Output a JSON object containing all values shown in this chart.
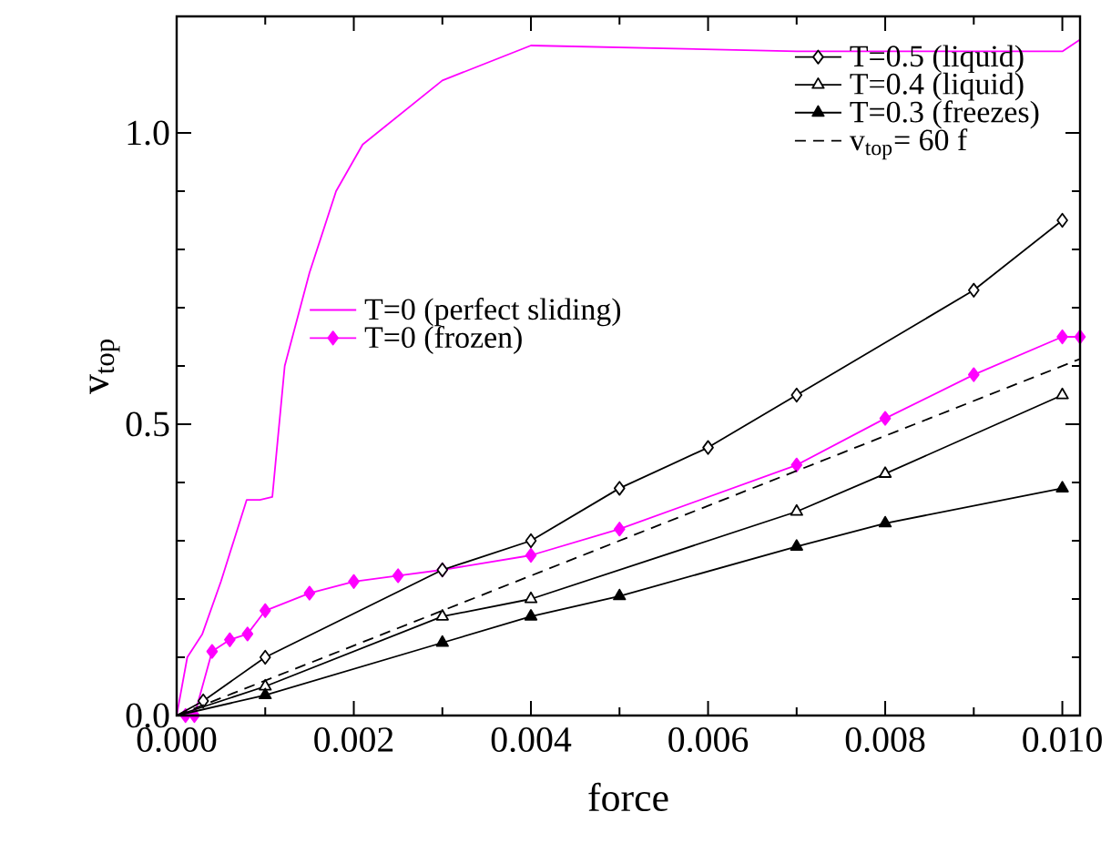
{
  "chart_data": {
    "type": "line",
    "xlabel": "force",
    "ylabel": "v$_{top}$",
    "xlim": [
      0,
      0.0102
    ],
    "ylim": [
      0,
      1.2
    ],
    "xticks": [
      {
        "value": 0,
        "label": "0.000"
      },
      {
        "value": 0.002,
        "label": "0.002"
      },
      {
        "value": 0.004,
        "label": "0.004"
      },
      {
        "value": 0.006,
        "label": "0.006"
      },
      {
        "value": 0.008,
        "label": "0.008"
      },
      {
        "value": 0.01,
        "label": "0.010"
      }
    ],
    "yticks": [
      {
        "value": 0,
        "label": "0.0"
      },
      {
        "value": 0.5,
        "label": "0.5"
      },
      {
        "value": 1.0,
        "label": "1.0"
      }
    ],
    "legend": "top right",
    "grid": false,
    "series": [
      {
        "name": "T=0.5 (liquid)",
        "color": "#000000",
        "marker": "diamond",
        "line_style": "solid",
        "x": [
          0,
          0.0003,
          0.001,
          0.003,
          0.004,
          0.005,
          0.006,
          0.007,
          0.009,
          0.01
        ],
        "values": [
          0,
          0.025,
          0.1,
          0.25,
          0.3,
          0.39,
          0.46,
          0.55,
          0.73,
          0.85
        ]
      },
      {
        "name": "T=0.4 (liquid)",
        "color": "#000000",
        "marker": "triangle",
        "line_style": "solid",
        "x": [
          0,
          0.001,
          0.003,
          0.004,
          0.007,
          0.008,
          0.01
        ],
        "values": [
          0,
          0.05,
          0.17,
          0.2,
          0.35,
          0.415,
          0.55
        ]
      },
      {
        "name": "T=0.3 (freezes)",
        "color": "#000000",
        "marker": "triangle",
        "line_style": "solid",
        "x": [
          0,
          0.001,
          0.003,
          0.004,
          0.005,
          0.007,
          0.008,
          0.01
        ],
        "values": [
          0,
          0.035,
          0.125,
          0.17,
          0.205,
          0.29,
          0.33,
          0.39
        ]
      },
      {
        "name": "v$_{top}$= 60 f",
        "color": "#000000",
        "marker": "none",
        "line_style": "dashed",
        "x": [
          0,
          0.0102
        ],
        "values": [
          0,
          0.612
        ]
      },
      {
        "name": "T=0 (perfect sliding)",
        "color": "#ff00ff",
        "marker": "none",
        "line_style": "solid",
        "x": [
          0,
          0.00012,
          0.00029,
          0.0005,
          0.00079,
          0.00094,
          0.00108,
          0.00122,
          0.0015,
          0.0018,
          0.0021,
          0.003,
          0.004,
          0.007,
          0.01,
          0.0102
        ],
        "values": [
          0,
          0.1,
          0.14,
          0.23,
          0.37,
          0.37,
          0.375,
          0.6,
          0.76,
          0.9,
          0.98,
          1.09,
          1.15,
          1.14,
          1.14,
          1.16
        ]
      },
      {
        "name": "T=0 (frozen)",
        "color": "#ff00ff",
        "marker": "diamond",
        "line_style": "solid",
        "x": [
          0.0001,
          0.0002,
          0.0004,
          0.0006,
          0.0008,
          0.001,
          0.0015,
          0.002,
          0.0025,
          0.003,
          0.004,
          0.005,
          0.007,
          0.008,
          0.009,
          0.01,
          0.0102
        ],
        "values": [
          0,
          0,
          0.11,
          0.13,
          0.14,
          0.18,
          0.21,
          0.23,
          0.24,
          0.25,
          0.275,
          0.32,
          0.43,
          0.51,
          0.585,
          0.65,
          0.65
        ]
      }
    ]
  }
}
